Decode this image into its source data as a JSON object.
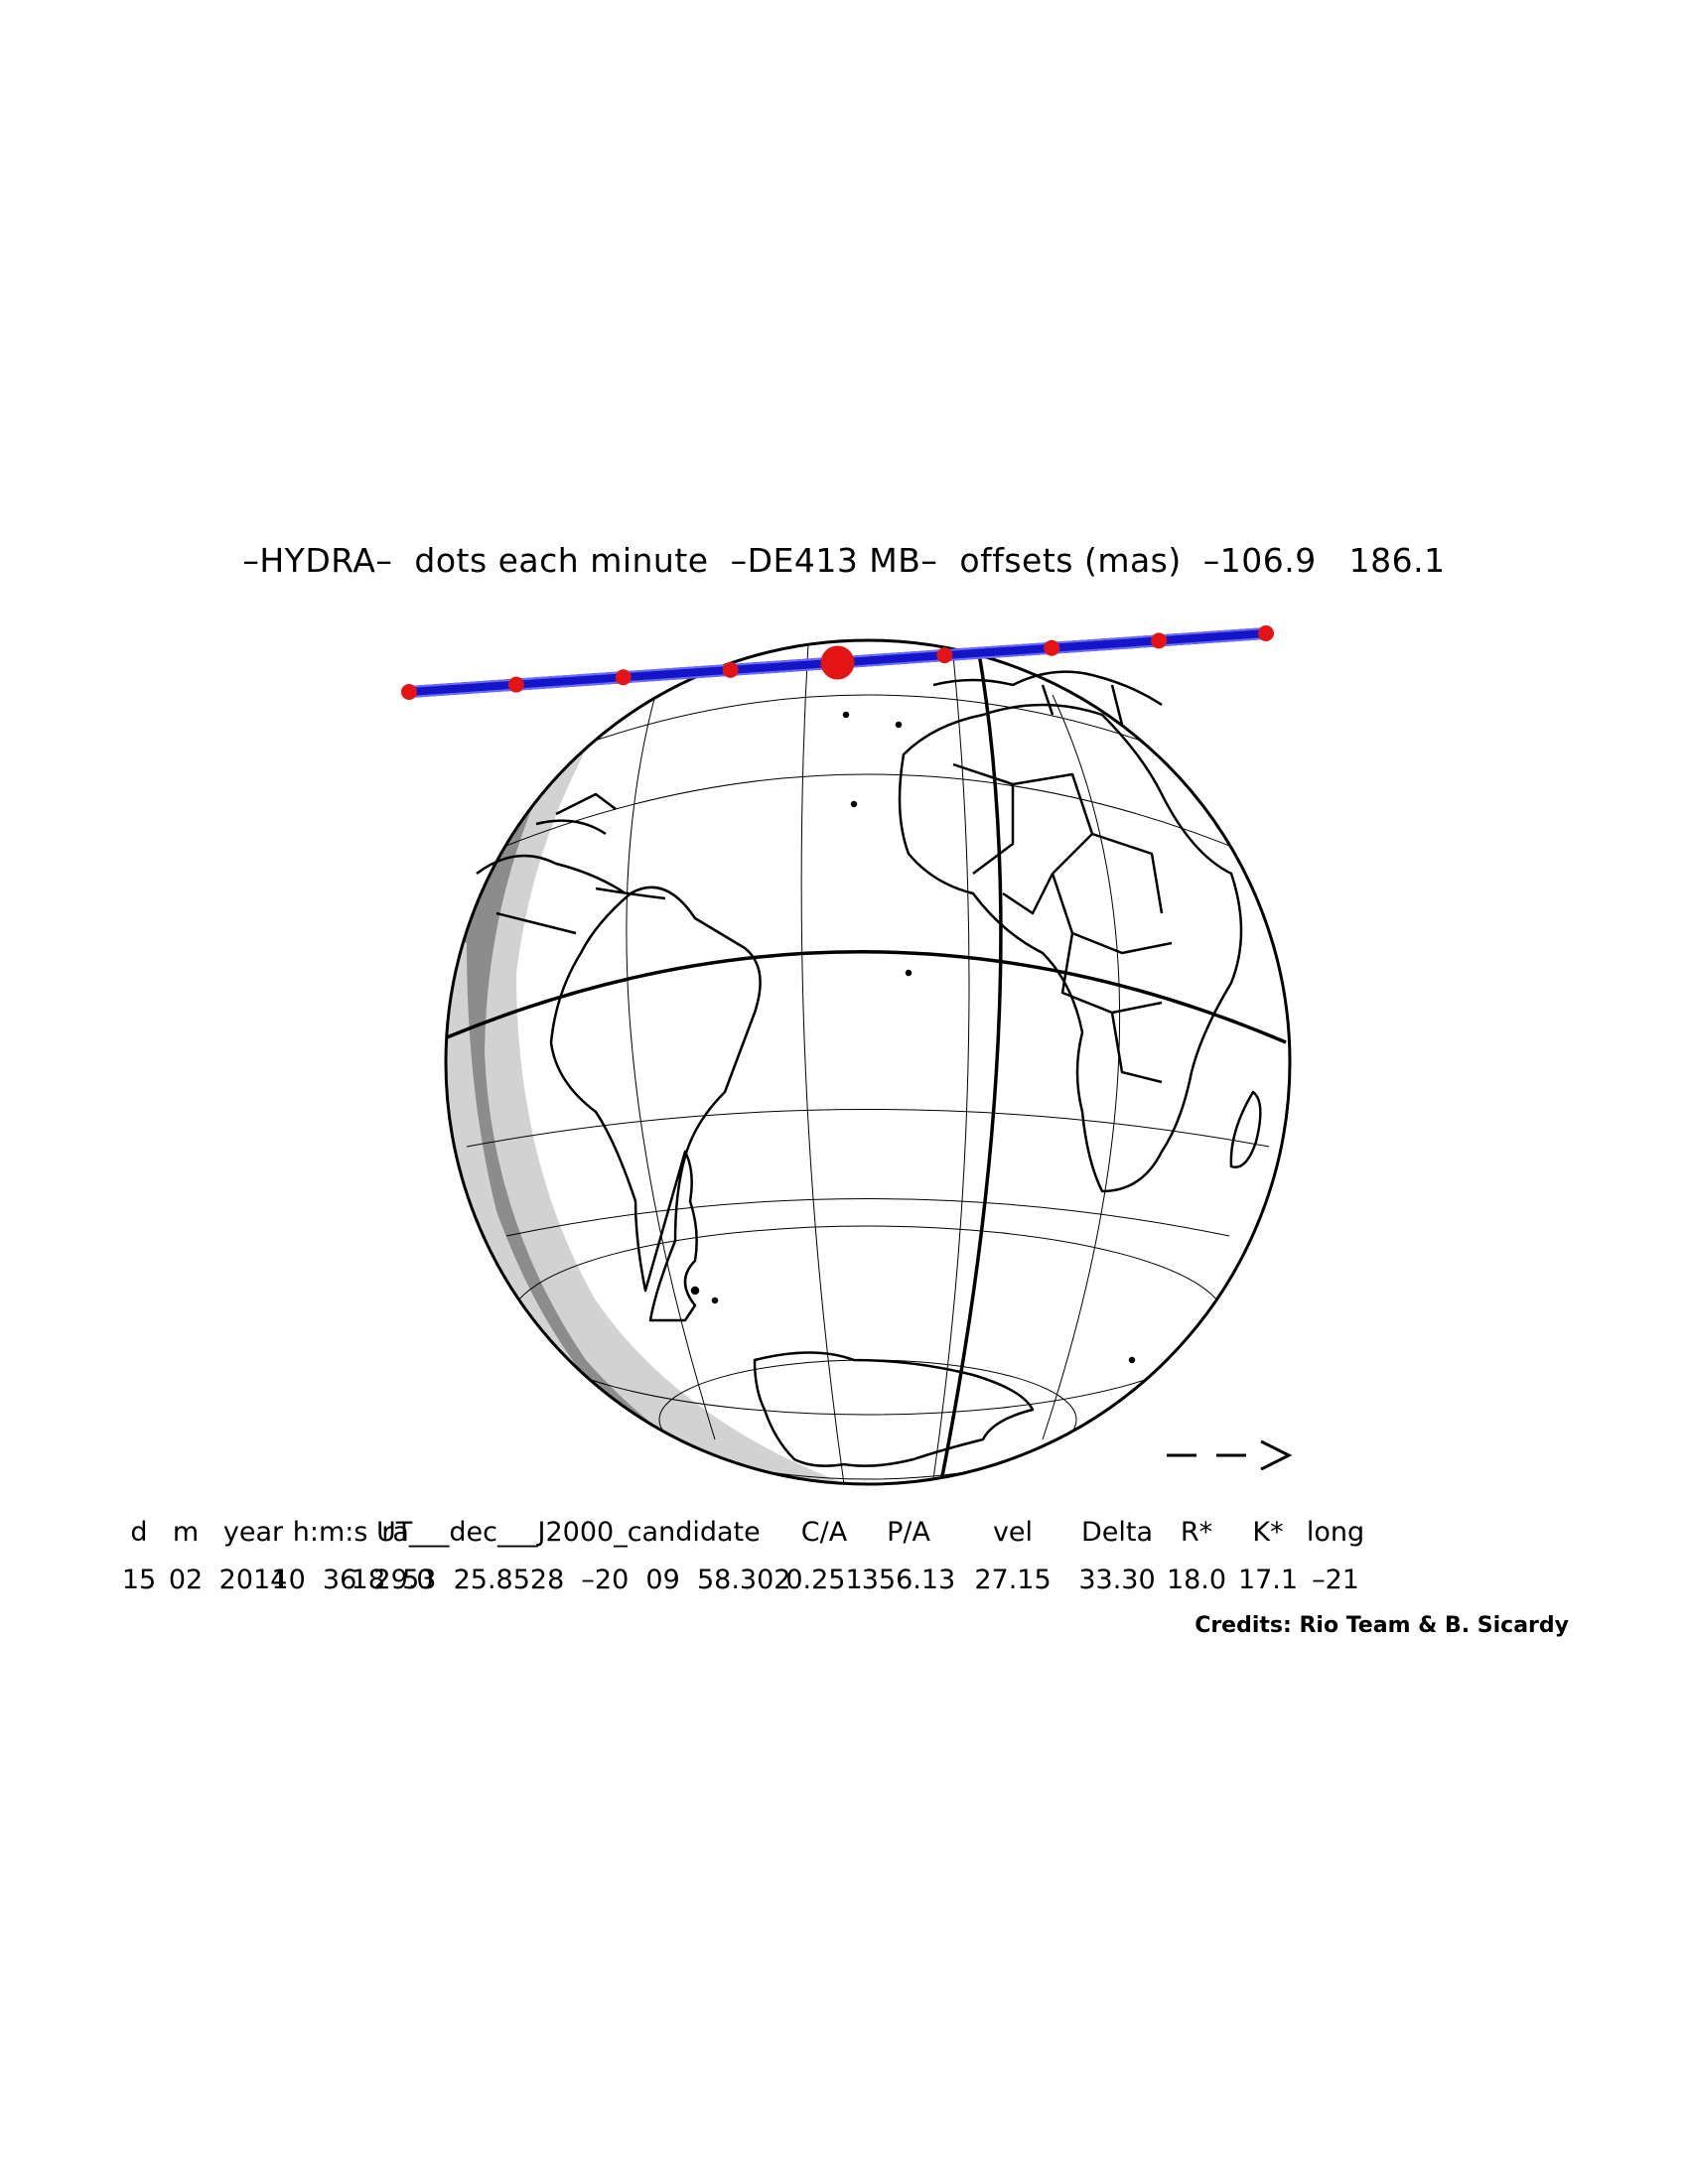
{
  "title": "–HYDRA–  dots each minute  –DE413 MB–  offsets (mas)  –106.9   186.1",
  "direction_arrow": "– – >",
  "parameters": {
    "headers": [
      "d",
      "m",
      "year",
      "h:m:s UT",
      "ra___dec___J2000_candidate",
      "C/A",
      "P/A",
      "vel",
      "Delta",
      "R*",
      "K*",
      "long"
    ],
    "values": [
      "15",
      "02",
      "2014",
      "10  36  29.0",
      "18  53  25.8528  –20  09  58.302",
      "0.251",
      "356.13",
      "27.15",
      "33.30",
      "18.0",
      "17.1",
      "–21"
    ]
  },
  "credits": "Credits: Rio Team & B. Sicardy",
  "colors": {
    "shadow_path": "#1414c8",
    "minute_dots": "#e41414",
    "night_dark": "#8c8c8c",
    "twilight_light": "#d2d2d2",
    "coastline": "#000000"
  },
  "icons": [
    "arrow-right-icon"
  ]
}
